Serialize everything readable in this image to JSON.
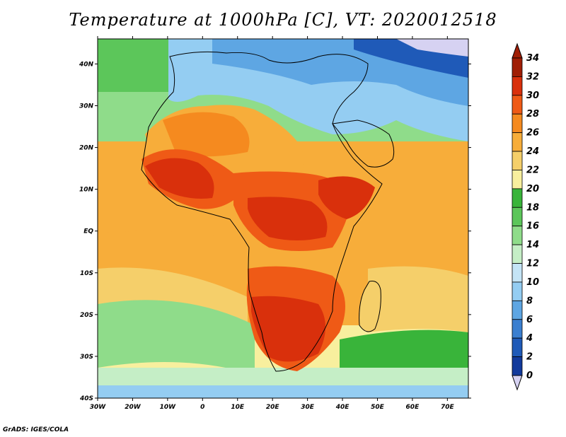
{
  "title": "Temperature at 1000hPa [C], VT: 2020012518",
  "credit": "GrADS: IGES/COLA",
  "map": {
    "lon_range": [
      -30,
      76
    ],
    "lat_range": [
      -40,
      46
    ],
    "x_ticks": [
      {
        "lon": -30,
        "label": "30W"
      },
      {
        "lon": -20,
        "label": "20W"
      },
      {
        "lon": -10,
        "label": "10W"
      },
      {
        "lon": 0,
        "label": "0"
      },
      {
        "lon": 10,
        "label": "10E"
      },
      {
        "lon": 20,
        "label": "20E"
      },
      {
        "lon": 30,
        "label": "30E"
      },
      {
        "lon": 40,
        "label": "40E"
      },
      {
        "lon": 50,
        "label": "50E"
      },
      {
        "lon": 60,
        "label": "60E"
      },
      {
        "lon": 70,
        "label": "70E"
      }
    ],
    "y_ticks": [
      {
        "lat": 40,
        "label": "40N"
      },
      {
        "lat": 30,
        "label": "30N"
      },
      {
        "lat": 20,
        "label": "20N"
      },
      {
        "lat": 10,
        "label": "10N"
      },
      {
        "lat": 0,
        "label": "EQ"
      },
      {
        "lat": -10,
        "label": "10S"
      },
      {
        "lat": -20,
        "label": "20S"
      },
      {
        "lat": -30,
        "label": "30S"
      },
      {
        "lat": -40,
        "label": "40S"
      }
    ]
  },
  "colorbar": {
    "levels": [
      0,
      2,
      4,
      6,
      8,
      10,
      12,
      14,
      16,
      18,
      20,
      22,
      24,
      26,
      28,
      30,
      32,
      34
    ],
    "colors": [
      "#a01e05",
      "#d9300c",
      "#ef5a16",
      "#f58a1f",
      "#f7ad3a",
      "#f5cf6a",
      "#f8ef9e",
      "#39b43a",
      "#5cc65a",
      "#8fdc8a",
      "#c5eec6",
      "#c4e4f6",
      "#94cdf2",
      "#5ea6e3",
      "#3b7fd0",
      "#1f5ab8",
      "#123a9c",
      "#0b1f7a",
      "#d6d2f2"
    ]
  },
  "regions": [
    {
      "name": "north-atlantic-ocean",
      "temp": 20,
      "color": "#39b43a"
    },
    {
      "name": "north-africa-mediterranean",
      "temp": 14,
      "color": "#94cdf2"
    },
    {
      "name": "sahara-west",
      "temp": 28,
      "color": "#f58a1f"
    },
    {
      "name": "middle-east",
      "temp": 12,
      "color": "#5ea6e3"
    },
    {
      "name": "central-asia",
      "temp": 2,
      "color": "#123a9c"
    },
    {
      "name": "arabian-sea",
      "temp": 24,
      "color": "#f5cf6a"
    },
    {
      "name": "west-africa",
      "temp": 32,
      "color": "#d9300c"
    },
    {
      "name": "central-africa",
      "temp": 30,
      "color": "#ef5a16"
    },
    {
      "name": "south-atlantic-ocean",
      "temp": 24,
      "color": "#f5cf6a"
    },
    {
      "name": "southern-africa",
      "temp": 32,
      "color": "#d9300c"
    },
    {
      "name": "madagascar",
      "temp": 24,
      "color": "#f5cf6a"
    },
    {
      "name": "southern-ocean",
      "temp": 16,
      "color": "#c5eec6"
    }
  ]
}
